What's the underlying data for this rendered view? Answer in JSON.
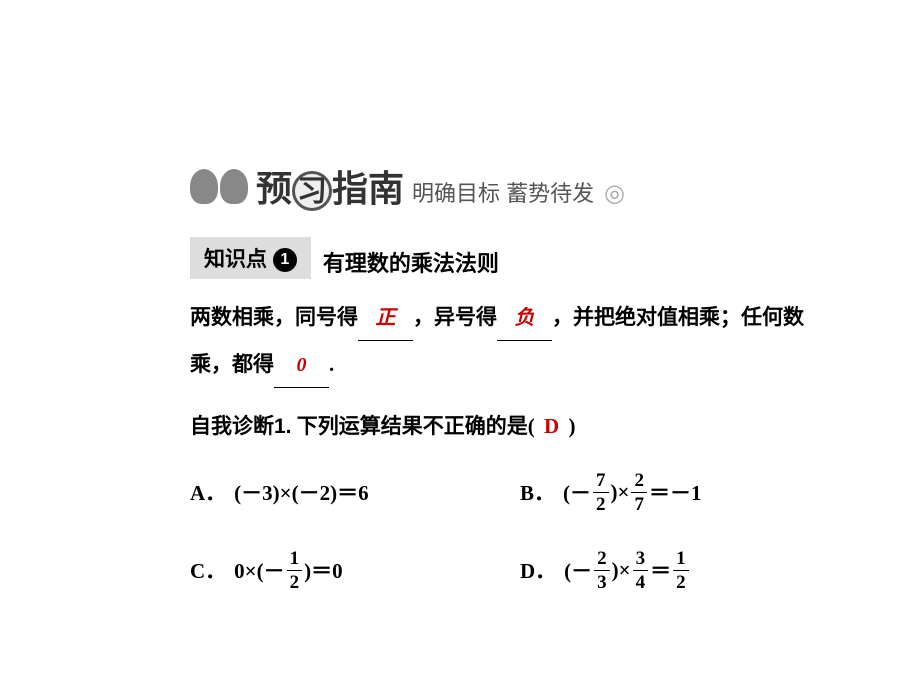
{
  "banner": {
    "char1": "预",
    "char2": "习",
    "char3": "指",
    "char4": "南",
    "subtitle": "明确目标 蓄势待发"
  },
  "knowledge": {
    "label": "知识点",
    "num": "1",
    "title": "有理数的乘法法则"
  },
  "rule": {
    "part1": "两数相乘，同号得",
    "ans1": "正",
    "part2": "，异号得",
    "ans2": "负",
    "part3": "，并把绝对值相乘；任何数",
    "part4": "乘，都得",
    "ans3": "0",
    "part5": "."
  },
  "q1": {
    "label": "自我诊断1.",
    "text": "下列运算结果不正确的是(",
    "answer": "D",
    "close": ")"
  },
  "options": {
    "A": {
      "label": "A．",
      "expr": "(－3)×(－2)＝6"
    },
    "B": {
      "label": "B．",
      "prefix": "(－",
      "f1n": "7",
      "f1d": "2",
      "mid": ")×",
      "f2n": "2",
      "f2d": "7",
      "suffix": "＝－1"
    },
    "C": {
      "label": "C．",
      "prefix": "0×(－",
      "f1n": "1",
      "f1d": "2",
      "suffix": ")＝0"
    },
    "D": {
      "label": "D．",
      "prefix": "(－",
      "f1n": "2",
      "f1d": "3",
      "mid": ")×",
      "f2n": "3",
      "f2d": "4",
      "eq": "＝",
      "f3n": "1",
      "f3d": "2"
    }
  },
  "colors": {
    "answer_color": "#c00",
    "text_color": "#000",
    "bg_color": "#fff"
  }
}
